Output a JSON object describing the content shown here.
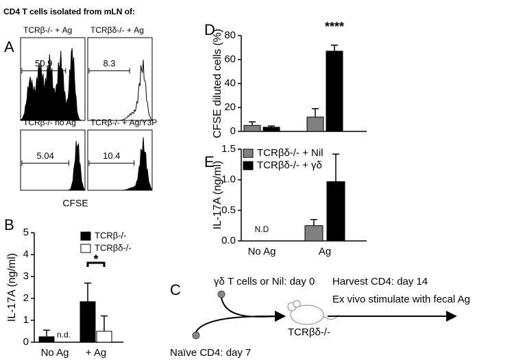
{
  "panel_labels": [
    "A",
    "B",
    "C",
    "D",
    "E"
  ],
  "flow": {
    "title": "CD4 T cells isolated from mLN of:",
    "x_label": "CFSE",
    "panels": [
      {
        "label": "TCRβ-/- + Ag",
        "gate": "50.9"
      },
      {
        "label": "TCRβδ-/- + Ag",
        "gate": "8.3"
      },
      {
        "label": "TCRβ-/- no Ag",
        "gate": "5.04"
      },
      {
        "label": "TCRβ-/- + Ag/Y3P",
        "gate": "10.4"
      }
    ]
  },
  "chart_data": [
    {
      "type": "bar",
      "y_label": "IL-17A (ng/ml)",
      "categories": [
        "No Ag",
        "+ Ag"
      ],
      "series": [
        {
          "name": "TCRβ-/-",
          "color": "#000000",
          "values": [
            0.25,
            1.85
          ],
          "errors": [
            0.3,
            0.85
          ]
        },
        {
          "name": "TCRβδ-/-",
          "color": "#ffffff",
          "values": [
            null,
            0.5
          ],
          "errors": [
            null,
            0.7
          ]
        }
      ],
      "ylim": [
        0,
        5
      ],
      "yticks": [
        0,
        1,
        2,
        3,
        4,
        5
      ],
      "annotations": [
        "n.d.",
        "*"
      ]
    },
    {
      "type": "bar",
      "y_label": "CFSE diluted cells (%)",
      "categories": [
        null,
        null
      ],
      "series": [
        {
          "color": "#808080",
          "values": [
            5,
            12
          ],
          "errors": [
            3,
            7
          ]
        },
        {
          "color": "#000000",
          "values": [
            3.5,
            67
          ],
          "errors": [
            1,
            5
          ]
        }
      ],
      "ylim": [
        0,
        80
      ],
      "yticks": [
        0,
        20,
        40,
        60,
        80
      ],
      "annotations": [
        "****"
      ]
    },
    {
      "type": "bar",
      "y_label": "IL-17A (ng/ml)",
      "categories": [
        "No Ag",
        "Ag"
      ],
      "series": [
        {
          "name": "TCRβδ-/- + Nil",
          "color": "#808080",
          "values": [
            null,
            0.25
          ],
          "errors": [
            null,
            0.1
          ]
        },
        {
          "name": "TCRβδ-/- + γδ",
          "color": "#000000",
          "values": [
            null,
            0.97
          ],
          "errors": [
            null,
            0.45
          ]
        }
      ],
      "ylim": [
        0,
        1.5
      ],
      "yticks": [
        {
          "value": 0,
          "label": "0.0"
        },
        0.5,
        {
          "value": 1,
          "label": "1.0"
        },
        1.5
      ],
      "annotations": [
        "N.D"
      ]
    }
  ],
  "diagram": {
    "donor": "γδ T cells or Nil: day 0",
    "naive": "Naïve CD4: day 7",
    "recipient": "TCRβδ-/-",
    "steps": [
      "Harvest CD4: day 14",
      "Ex vivo stimulate with fecal Ag"
    ]
  }
}
